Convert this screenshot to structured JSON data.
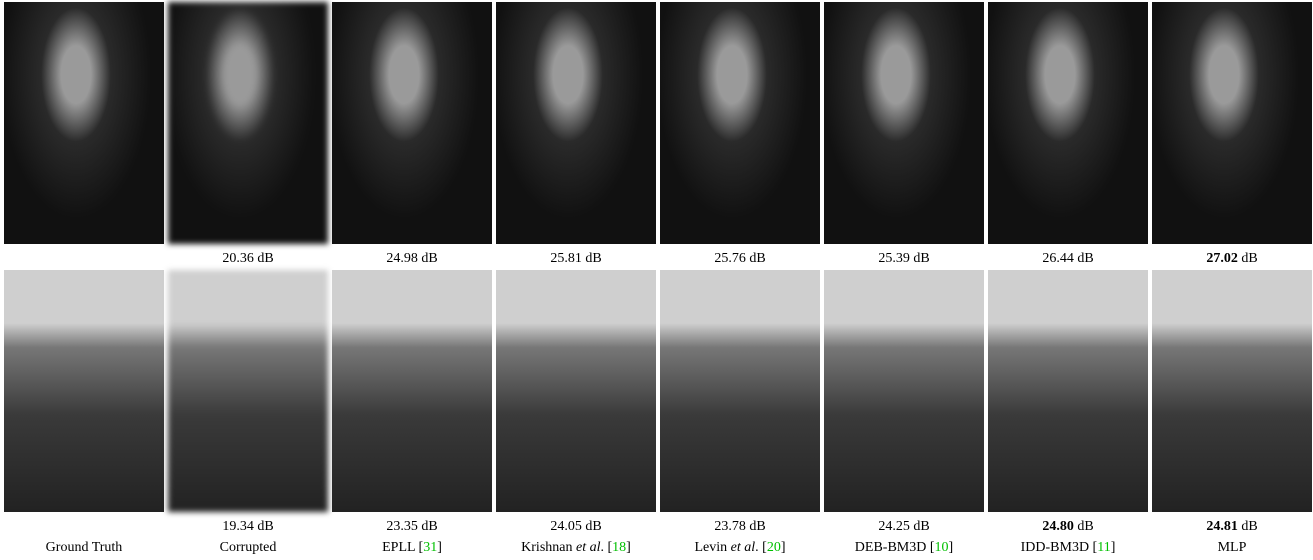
{
  "rows": [
    {
      "scores": [
        {
          "value": "20.36",
          "unit": "dB",
          "best": false
        },
        {
          "value": "24.98",
          "unit": "dB",
          "best": false
        },
        {
          "value": "25.81",
          "unit": "dB",
          "best": false
        },
        {
          "value": "25.76",
          "unit": "dB",
          "best": false
        },
        {
          "value": "25.39",
          "unit": "dB",
          "best": false
        },
        {
          "value": "26.44",
          "unit": "dB",
          "best": false
        },
        {
          "value": "27.02",
          "unit": "dB",
          "best": true
        }
      ]
    },
    {
      "scores": [
        {
          "value": "19.34",
          "unit": "dB",
          "best": false
        },
        {
          "value": "23.35",
          "unit": "dB",
          "best": false
        },
        {
          "value": "24.05",
          "unit": "dB",
          "best": false
        },
        {
          "value": "23.78",
          "unit": "dB",
          "best": false
        },
        {
          "value": "24.25",
          "unit": "dB",
          "best": false
        },
        {
          "value": "24.80",
          "unit": "dB",
          "best": true
        },
        {
          "value": "24.81",
          "unit": "dB",
          "best": true
        }
      ]
    }
  ],
  "columns": [
    [
      {
        "text": "Ground Truth"
      }
    ],
    [
      {
        "text": "Corrupted"
      }
    ],
    [
      {
        "text": "EPLL ["
      },
      {
        "text": "31",
        "style": "ref"
      },
      {
        "text": "]"
      }
    ],
    [
      {
        "text": "Krishnan "
      },
      {
        "text": "et al",
        "style": "italic"
      },
      {
        "text": ". ["
      },
      {
        "text": "18",
        "style": "ref"
      },
      {
        "text": "]"
      }
    ],
    [
      {
        "text": "Levin "
      },
      {
        "text": "et al",
        "style": "italic"
      },
      {
        "text": ". ["
      },
      {
        "text": "20",
        "style": "ref"
      },
      {
        "text": "]"
      }
    ],
    [
      {
        "text": "DEB-BM3D ["
      },
      {
        "text": "10",
        "style": "ref"
      },
      {
        "text": "]"
      }
    ],
    [
      {
        "text": "IDD-BM3D ["
      },
      {
        "text": "11",
        "style": "ref"
      },
      {
        "text": "]"
      }
    ],
    [
      {
        "text": "MLP"
      }
    ]
  ]
}
